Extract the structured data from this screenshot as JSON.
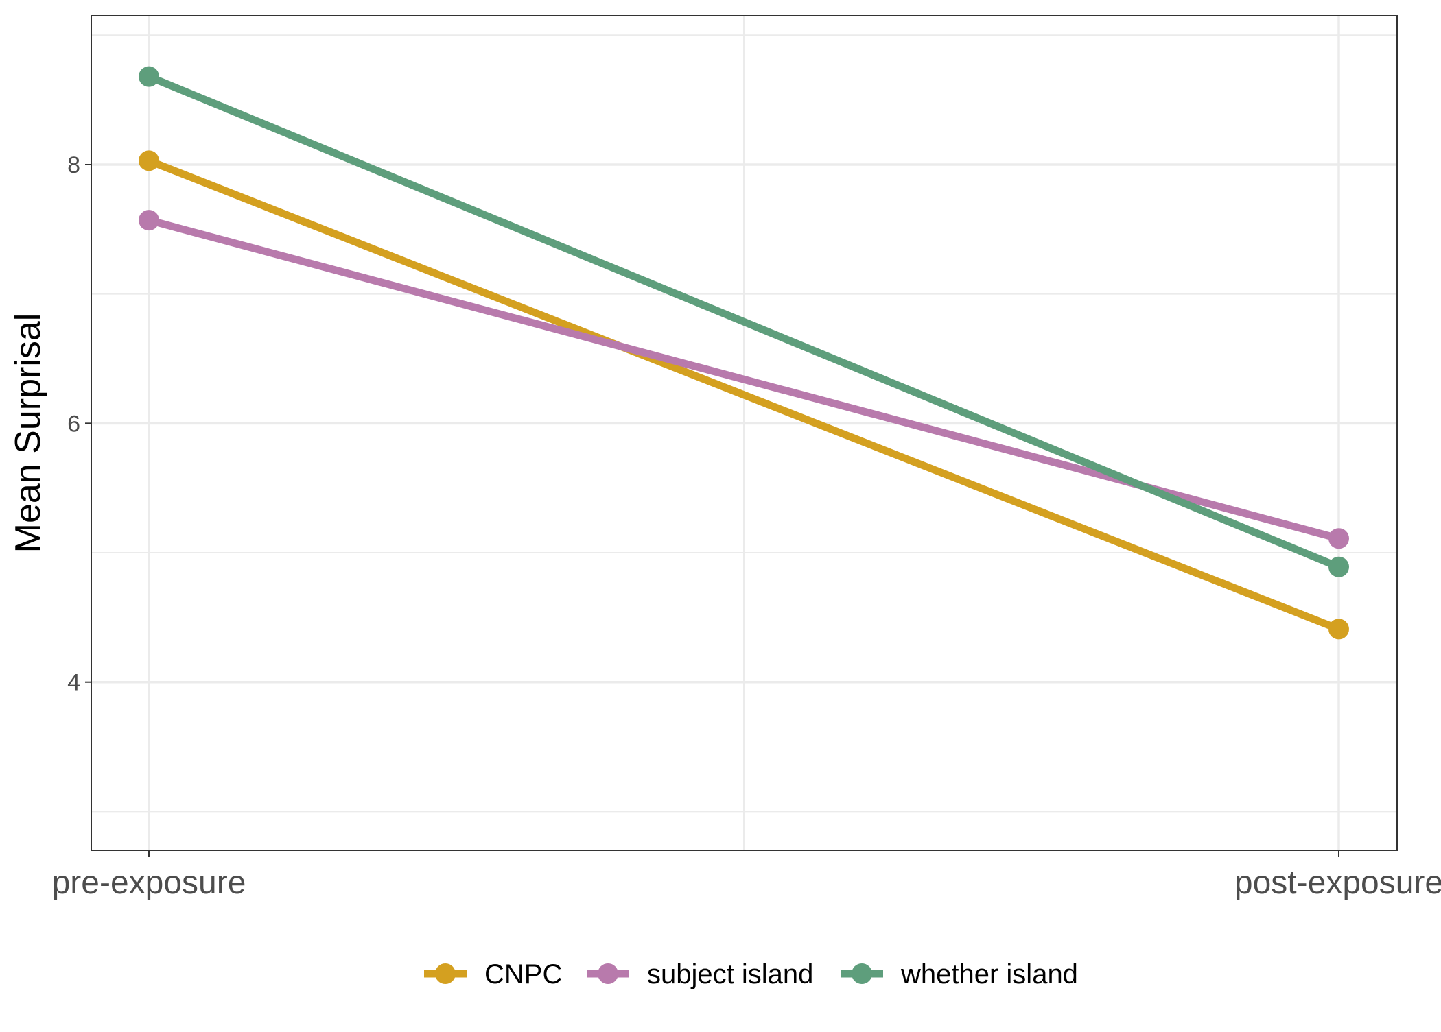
{
  "chart_data": {
    "type": "line",
    "categories": [
      "pre-exposure",
      "post-exposure"
    ],
    "ylabel": "Mean Surprisal",
    "xlabel": "",
    "ylim": [
      2.7,
      9.15
    ],
    "yticks": [
      4,
      6,
      8
    ],
    "grid": true,
    "legend_position": "bottom",
    "series": [
      {
        "name": "CNPC",
        "values": [
          8.03,
          4.41
        ],
        "color": "#D4A020"
      },
      {
        "name": "subject island",
        "values": [
          7.57,
          5.11
        ],
        "color": "#B87AAC"
      },
      {
        "name": "whether island",
        "values": [
          8.68,
          4.89
        ],
        "color": "#5E9E7C"
      }
    ]
  }
}
